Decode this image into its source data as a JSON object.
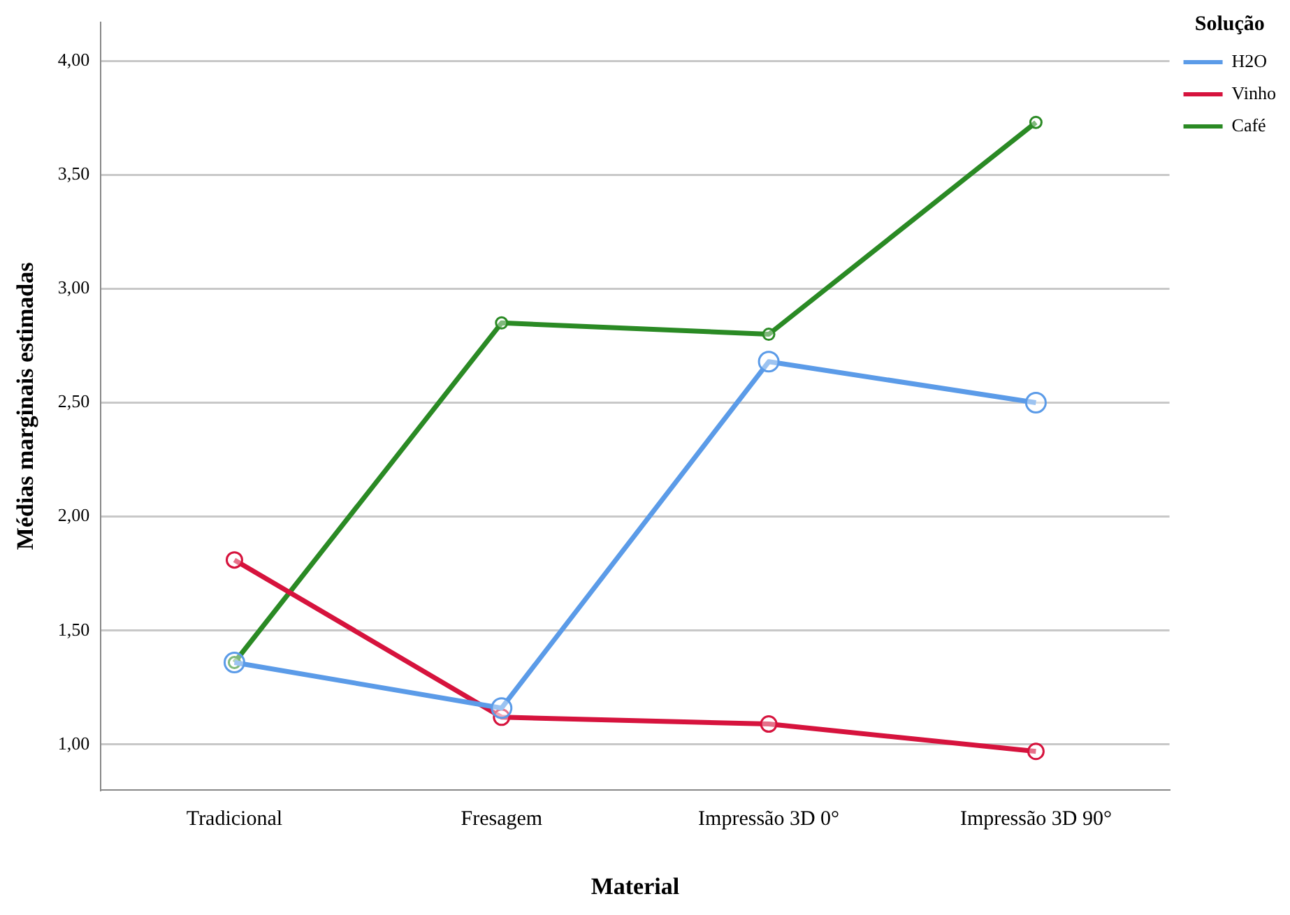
{
  "chart_data": {
    "type": "line",
    "xlabel": "Material",
    "ylabel": "Médias marginais estimadas",
    "legend_title": "Solução",
    "categories": [
      "Tradicional",
      "Fresagem",
      "Impressão 3D 0°",
      "Impressão 3D 90°"
    ],
    "series": [
      {
        "name": "H2O",
        "color": "#5b9be8",
        "values": [
          1.36,
          1.16,
          2.68,
          2.5
        ]
      },
      {
        "name": "Vinho",
        "color": "#d6133d",
        "values": [
          1.81,
          1.12,
          1.09,
          0.97
        ]
      },
      {
        "name": "Café",
        "color": "#2a8a24",
        "values": [
          1.36,
          2.85,
          2.8,
          3.73
        ]
      }
    ],
    "ylim": [
      0.8,
      4.17
    ],
    "yticks": [
      {
        "value": 1,
        "label": "1,00"
      },
      {
        "value": 1.5,
        "label": "1,50"
      },
      {
        "value": 2,
        "label": "2,00"
      },
      {
        "value": 2.5,
        "label": "2,50"
      },
      {
        "value": 3,
        "label": "3,00"
      },
      {
        "value": 3.5,
        "label": "3,50"
      },
      {
        "value": 4,
        "label": "4,00"
      }
    ],
    "grid": "y",
    "legend": "top right",
    "marker": "circle",
    "line_style": "solid"
  }
}
